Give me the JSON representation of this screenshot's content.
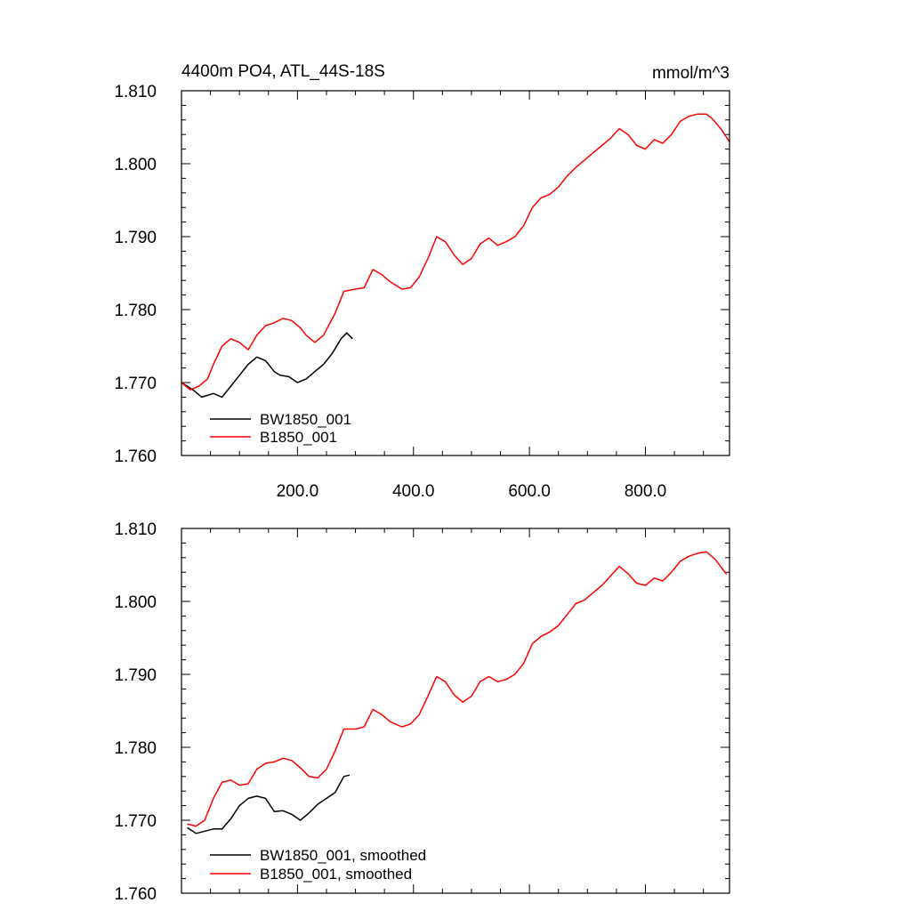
{
  "colors": {
    "BW1850_001": "#000000",
    "B1850_001": "#ff0000"
  },
  "chart_data": [
    {
      "type": "line",
      "title": "4400m PO4, ATL_44S-18S",
      "units": "mmol/m^3",
      "xlabel": "",
      "ylabel": "",
      "xlim": [
        0,
        945
      ],
      "ylim": [
        1.76,
        1.81
      ],
      "xticks": [
        200,
        400,
        600,
        800
      ],
      "xtick_labels": [
        "200.0",
        "400.0",
        "600.0",
        "800.0"
      ],
      "yticks": [
        1.76,
        1.77,
        1.78,
        1.79,
        1.8,
        1.81
      ],
      "ytick_labels": [
        "1.760",
        "1.770",
        "1.780",
        "1.790",
        "1.800",
        "1.810"
      ],
      "grid": false,
      "legend_placement": "bottom-left",
      "series": [
        {
          "name": "BW1850_001",
          "color": "#000000",
          "x": [
            0,
            20,
            35,
            55,
            70,
            85,
            100,
            115,
            130,
            145,
            160,
            170,
            185,
            200,
            215,
            230,
            245,
            260,
            275,
            285,
            295
          ],
          "y": [
            1.77,
            1.769,
            1.768,
            1.7685,
            1.768,
            1.7695,
            1.771,
            1.7725,
            1.7735,
            1.773,
            1.7715,
            1.771,
            1.7708,
            1.77,
            1.7705,
            1.7715,
            1.7725,
            1.774,
            1.776,
            1.7768,
            1.776
          ]
        },
        {
          "name": "B1850_001",
          "color": "#ff0000",
          "x": [
            0,
            15,
            30,
            45,
            55,
            70,
            85,
            100,
            115,
            130,
            145,
            160,
            175,
            190,
            205,
            215,
            230,
            245,
            265,
            280,
            300,
            315,
            330,
            345,
            360,
            380,
            395,
            410,
            425,
            440,
            455,
            470,
            485,
            500,
            515,
            530,
            545,
            560,
            575,
            590,
            605,
            620,
            635,
            650,
            665,
            680,
            695,
            710,
            725,
            740,
            755,
            770,
            785,
            800,
            815,
            830,
            845,
            860,
            875,
            890,
            905,
            915,
            930,
            945
          ],
          "y": [
            1.77,
            1.769,
            1.7695,
            1.7705,
            1.7725,
            1.775,
            1.776,
            1.7755,
            1.7745,
            1.7765,
            1.7778,
            1.7782,
            1.7788,
            1.7785,
            1.7775,
            1.7765,
            1.7755,
            1.7765,
            1.7795,
            1.7825,
            1.7828,
            1.783,
            1.7855,
            1.7848,
            1.7838,
            1.7828,
            1.783,
            1.7845,
            1.787,
            1.79,
            1.7893,
            1.7875,
            1.7862,
            1.787,
            1.789,
            1.7898,
            1.7888,
            1.7893,
            1.79,
            1.7915,
            1.794,
            1.7953,
            1.7958,
            1.7968,
            1.7983,
            1.7995,
            1.8005,
            1.8015,
            1.8025,
            1.8035,
            1.8048,
            1.804,
            1.8025,
            1.802,
            1.8033,
            1.8028,
            1.804,
            1.8058,
            1.8065,
            1.8068,
            1.8068,
            1.8062,
            1.8048,
            1.803
          ]
        }
      ]
    },
    {
      "type": "line",
      "title": "",
      "xlabel": "",
      "ylabel": "",
      "xlim": [
        0,
        945
      ],
      "ylim": [
        1.76,
        1.81
      ],
      "xticks": [
        200,
        400,
        600,
        800
      ],
      "xtick_labels": [],
      "yticks": [
        1.76,
        1.77,
        1.78,
        1.79,
        1.8,
        1.81
      ],
      "ytick_labels": [
        "1.760",
        "1.770",
        "1.780",
        "1.790",
        "1.800",
        "1.810"
      ],
      "grid": false,
      "legend_placement": "bottom-left",
      "series": [
        {
          "name": "BW1850_001, smoothed",
          "color": "#000000",
          "x": [
            10,
            25,
            40,
            55,
            70,
            85,
            100,
            115,
            130,
            145,
            160,
            175,
            190,
            205,
            220,
            235,
            250,
            265,
            280,
            290
          ],
          "y": [
            1.769,
            1.7682,
            1.7685,
            1.7688,
            1.7688,
            1.7702,
            1.772,
            1.773,
            1.7733,
            1.773,
            1.7712,
            1.7713,
            1.7708,
            1.77,
            1.771,
            1.7722,
            1.773,
            1.7738,
            1.776,
            1.7762
          ]
        },
        {
          "name": "B1850_001, smoothed",
          "color": "#ff0000",
          "x": [
            10,
            25,
            40,
            55,
            70,
            85,
            100,
            115,
            130,
            145,
            160,
            175,
            190,
            205,
            220,
            235,
            250,
            265,
            280,
            300,
            315,
            330,
            345,
            360,
            380,
            395,
            410,
            425,
            440,
            455,
            470,
            485,
            500,
            515,
            530,
            545,
            560,
            575,
            590,
            605,
            620,
            635,
            650,
            665,
            680,
            695,
            710,
            725,
            740,
            755,
            770,
            785,
            800,
            815,
            830,
            845,
            860,
            875,
            890,
            905,
            920,
            940
          ],
          "y": [
            1.7695,
            1.7692,
            1.77,
            1.773,
            1.7752,
            1.7755,
            1.7748,
            1.775,
            1.777,
            1.7778,
            1.778,
            1.7785,
            1.7782,
            1.7772,
            1.776,
            1.7758,
            1.777,
            1.7795,
            1.7825,
            1.7825,
            1.7828,
            1.7852,
            1.7845,
            1.7835,
            1.7828,
            1.7832,
            1.7845,
            1.787,
            1.7897,
            1.789,
            1.7872,
            1.7862,
            1.787,
            1.789,
            1.7897,
            1.789,
            1.7893,
            1.79,
            1.7915,
            1.7942,
            1.7952,
            1.7958,
            1.7967,
            1.7982,
            1.7997,
            1.8002,
            1.8012,
            1.8022,
            1.8035,
            1.8048,
            1.8038,
            1.8025,
            1.8022,
            1.8032,
            1.8028,
            1.804,
            1.8055,
            1.8062,
            1.8066,
            1.8068,
            1.8058,
            1.8037
          ]
        }
      ]
    }
  ]
}
